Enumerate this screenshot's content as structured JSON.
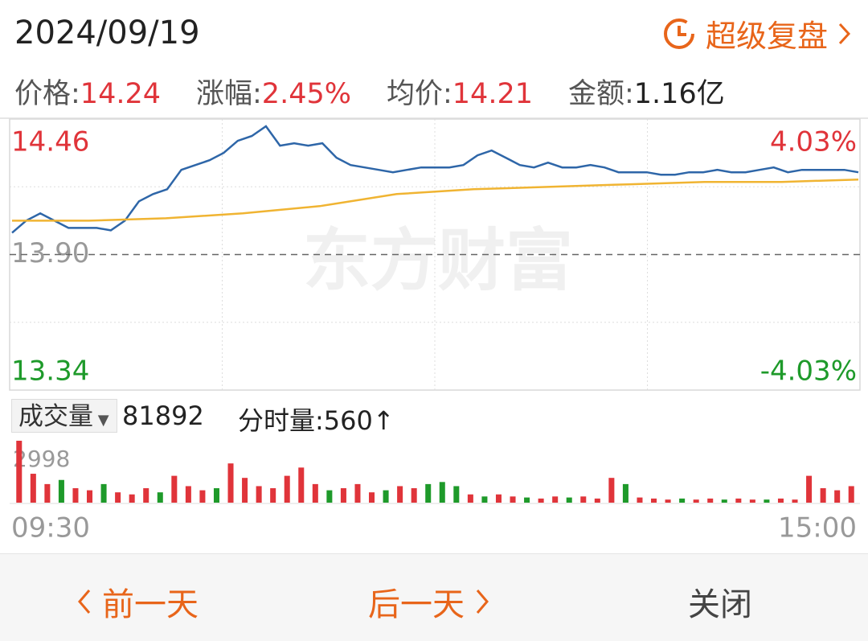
{
  "header": {
    "date": "2024/09/19",
    "action": "超级复盘"
  },
  "stats": [
    {
      "label": "价格:",
      "value": "14.24"
    },
    {
      "label": "涨幅:",
      "value": "2.45%"
    },
    {
      "label": "均价:",
      "value": "14.21"
    },
    {
      "label": "金额:",
      "value": "1.16亿"
    }
  ],
  "watermark": "东方财富",
  "chart_data": [
    {
      "type": "line",
      "series": [
        {
          "color": "#2e66a8",
          "values": [
            13.99,
            14.04,
            14.07,
            14.04,
            14.01,
            14.01,
            14.01,
            14.0,
            14.04,
            14.12,
            14.15,
            14.17,
            14.25,
            14.27,
            14.29,
            14.32,
            14.37,
            14.39,
            14.43,
            14.35,
            14.36,
            14.35,
            14.36,
            14.3,
            14.27,
            14.26,
            14.25,
            14.24,
            14.25,
            14.26,
            14.26,
            14.26,
            14.27,
            14.31,
            14.33,
            14.3,
            14.27,
            14.26,
            14.28,
            14.26,
            14.26,
            14.27,
            14.26,
            14.24,
            14.24,
            14.24,
            14.23,
            14.23,
            14.24,
            14.24,
            14.25,
            14.24,
            14.24,
            14.25,
            14.26,
            14.24,
            14.25,
            14.25,
            14.25,
            14.25,
            14.24
          ]
        },
        {
          "color": "#f0b432",
          "values": [
            14.04,
            14.04,
            14.05,
            14.07,
            14.1,
            14.15,
            14.17,
            14.18,
            14.19,
            14.2,
            14.2,
            14.21
          ]
        }
      ],
      "ylim": [
        13.34,
        14.46
      ],
      "yticks": [
        {
          "value": 14.46,
          "label": "14.46"
        },
        {
          "value": 13.9,
          "label": "13.90"
        },
        {
          "value": 13.34,
          "label": "13.34"
        }
      ],
      "y2lim": [
        -4.03,
        4.03
      ],
      "y2ticks": [
        {
          "value": 4.03,
          "label": "4.03%"
        },
        {
          "value": -4.03,
          "label": "-4.03%"
        }
      ],
      "time_labels": [
        "09:30",
        "15:00"
      ]
    },
    {
      "type": "bar",
      "title": "成交量",
      "total": "81892",
      "tick_volume": {
        "label": "分时量:",
        "value": "560↑"
      },
      "values": [
        2998,
        1400,
        900,
        1100,
        700,
        600,
        900,
        500,
        400,
        700,
        500,
        1300,
        800,
        600,
        700,
        1900,
        1200,
        800,
        700,
        1300,
        1700,
        900,
        600,
        700,
        900,
        500,
        600,
        800,
        700,
        900,
        1000,
        800,
        400,
        300,
        400,
        300,
        250,
        200,
        300,
        250,
        300,
        200,
        1200,
        900,
        250,
        200,
        150,
        200,
        150,
        200,
        150,
        200,
        150,
        150,
        200,
        150,
        1300,
        700,
        600,
        800
      ],
      "rising": [
        true,
        true,
        true,
        false,
        true,
        true,
        false,
        true,
        true,
        true,
        false,
        true,
        true,
        true,
        false,
        true,
        true,
        true,
        true,
        true,
        true,
        true,
        false,
        true,
        true,
        true,
        false,
        true,
        true,
        false,
        false,
        false,
        true,
        false,
        true,
        true,
        false,
        true,
        true,
        false,
        true,
        true,
        true,
        false,
        true,
        true,
        true,
        false,
        true,
        true,
        false,
        true,
        true,
        false,
        true,
        true,
        true,
        true,
        true,
        true
      ],
      "up_color": "#e0343a",
      "down_color": "#1e9a2a",
      "ylim": [
        0,
        2998
      ],
      "yticks": [
        2998
      ]
    }
  ],
  "footer": {
    "prev": "前一天",
    "next": "后一天",
    "close": "关闭"
  }
}
